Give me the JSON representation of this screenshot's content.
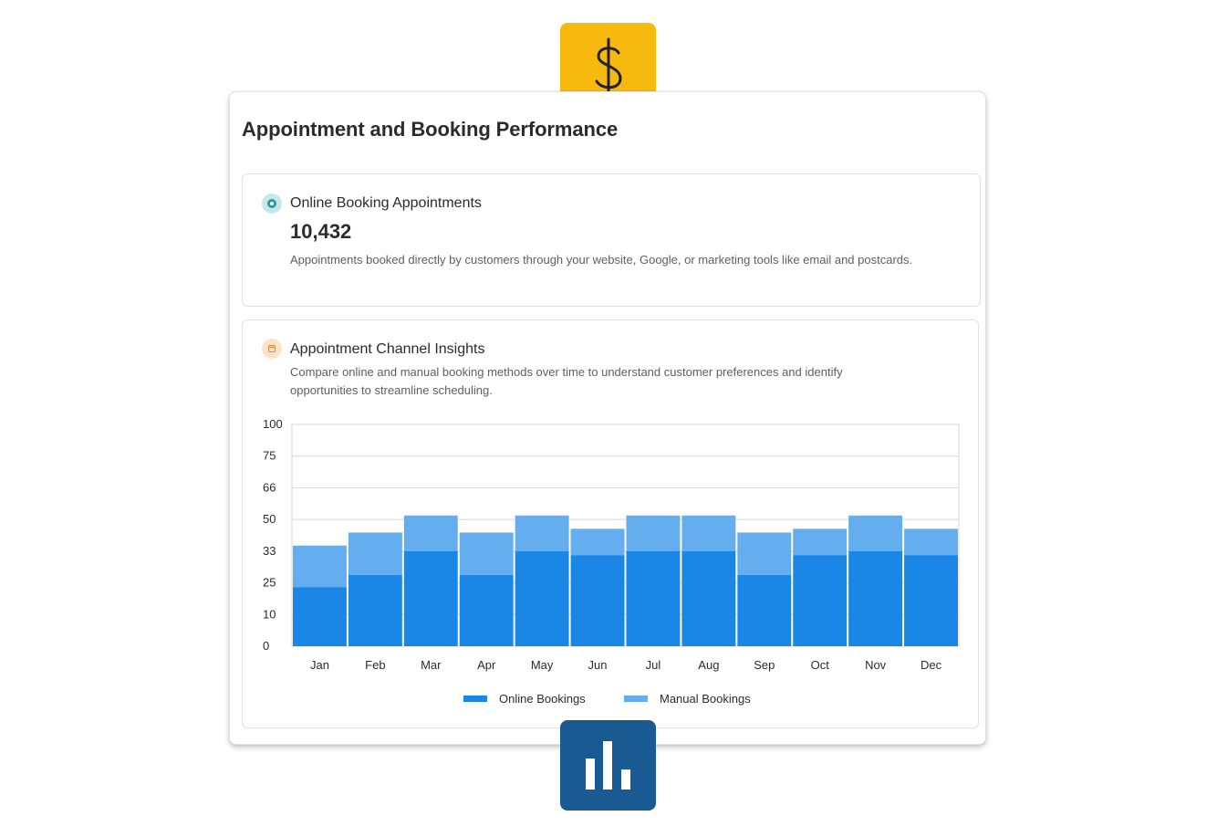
{
  "card": {
    "title": "Appointment and Booking Performance"
  },
  "online_panel": {
    "heading": "Online Booking Appointments",
    "metric": "10,432",
    "description": "Appointments booked directly by customers through your website, Google, or marketing tools like email and postcards.",
    "icon": "appointment-badge-icon"
  },
  "insights_panel": {
    "heading": "Appointment Channel Insights",
    "description": "Compare online and manual booking methods over time to understand customer preferences and identify opportunities to streamline scheduling.",
    "icon": "calendar-badge-icon"
  },
  "icons": {
    "top": "dollar-icon",
    "bottom": "bar-chart-icon"
  },
  "colors": {
    "online": "#1a86e6",
    "manual": "#64adef",
    "dollar_tile": "#f7b90e",
    "chart_tile": "#1a5a92"
  },
  "chart_data": {
    "type": "bar",
    "stacked": true,
    "categories": [
      "Jan",
      "Feb",
      "Mar",
      "Apr",
      "May",
      "Jun",
      "Jul",
      "Aug",
      "Sep",
      "Oct",
      "Nov",
      "Dec"
    ],
    "series": [
      {
        "name": "Online Bookings",
        "values": [
          23,
          27,
          33,
          27,
          33,
          32,
          33,
          33,
          27,
          32,
          33,
          32
        ]
      },
      {
        "name": "Manual Bookings",
        "values": [
          13,
          16,
          19,
          16,
          19,
          13,
          19,
          19,
          16,
          13,
          19,
          13
        ]
      }
    ],
    "yticks": [
      0,
      10,
      25,
      33,
      50,
      66,
      75,
      100
    ],
    "ylim": [
      0,
      100
    ],
    "title": "",
    "xlabel": "",
    "ylabel": "",
    "grid": true,
    "legend": "bottom"
  }
}
